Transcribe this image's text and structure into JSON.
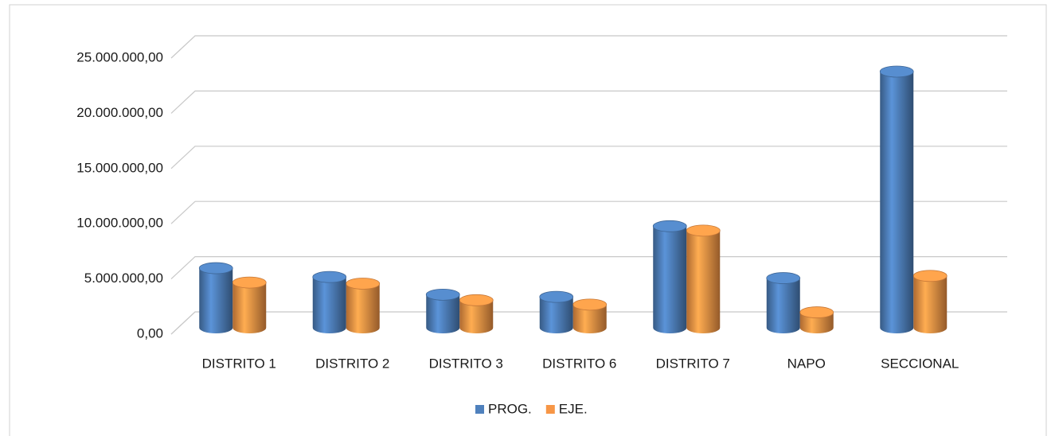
{
  "chart_data": {
    "type": "bar3d",
    "categories": [
      "DISTRITO 1",
      "DISTRITO 2",
      "DISTRITO 3",
      "DISTRITO 6",
      "DISTRITO 7",
      "NAPO",
      "SECCIONAL"
    ],
    "series": [
      {
        "name": "PROG.",
        "color": "#4f81bd",
        "values": [
          5400000,
          4600000,
          3000000,
          2800000,
          9200000,
          4500000,
          23200000
        ]
      },
      {
        "name": "EJE.",
        "color": "#f79646",
        "values": [
          4100000,
          4000000,
          2500000,
          2100000,
          8800000,
          1400000,
          4700000
        ]
      }
    ],
    "ylim": [
      0,
      25000000
    ],
    "yticks": [
      {
        "value": 0,
        "label": "0,00"
      },
      {
        "value": 5000000,
        "label": "5.000.000,00"
      },
      {
        "value": 10000000,
        "label": "10.000.000,00"
      },
      {
        "value": 15000000,
        "label": "15.000.000,00"
      },
      {
        "value": 20000000,
        "label": "20.000.000,00"
      },
      {
        "value": 25000000,
        "label": "25.000.000,00"
      }
    ],
    "grid": true,
    "legend": "bottom"
  }
}
